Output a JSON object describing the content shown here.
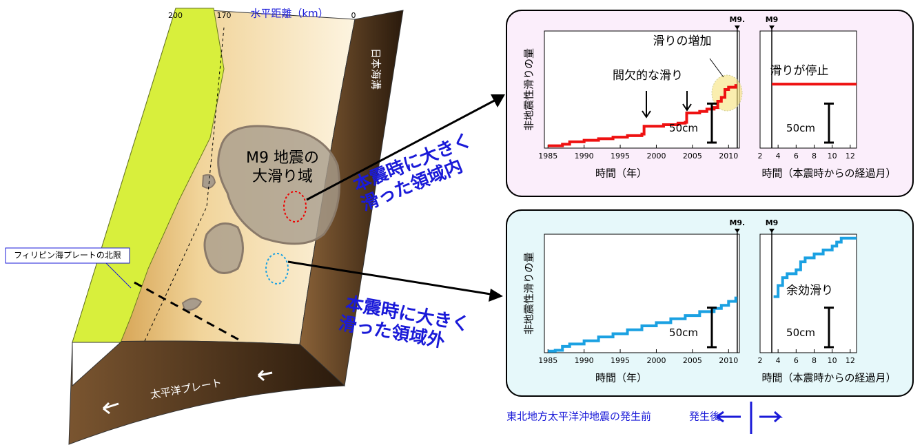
{
  "diagram": {
    "distance_title": "水平距離（km）",
    "distance_ticks": [
      200,
      170,
      0
    ],
    "trench": "日本海溝",
    "slip_area": [
      "M9 地震の",
      "大滑り域"
    ],
    "inside": [
      "本震時に大きく",
      "滑った領域内"
    ],
    "outside": [
      "本震時に大きく",
      "滑った領域外"
    ],
    "plate_limit": "フィリピン海プレートの北限",
    "plate": "太平洋プレート",
    "before": "東北地方太平洋沖地震の発生前",
    "after": "発生後"
  },
  "chart_data": [
    {
      "type": "line",
      "step": "post",
      "color": "#ee1111",
      "y_label": "非地震性滑りの量",
      "x_label": "時間（年）",
      "xlim": [
        1984.5,
        2011.5
      ],
      "xticks": [
        1985,
        1990,
        1995,
        2000,
        2005,
        2010
      ],
      "ylim": [
        0,
        150
      ],
      "mainshock": 2011.2,
      "mainshock_label": "M9.",
      "scale_bar": {
        "value": 50,
        "label": "50cm"
      },
      "annotations": [
        "間欠的な滑り",
        "滑りの増加"
      ],
      "x": [
        1985,
        1987,
        1988,
        1990,
        1992,
        1994,
        1996,
        1998,
        1998.3,
        2001,
        2003,
        2004,
        2004.2,
        2006,
        2007,
        2008,
        2008.5,
        2009,
        2009.5,
        2010,
        2011
      ],
      "values": [
        3,
        5,
        8,
        10,
        12,
        14,
        16,
        18,
        28,
        30,
        32,
        33,
        45,
        47,
        50,
        52,
        60,
        65,
        75,
        78,
        82
      ]
    },
    {
      "type": "line",
      "step": "post",
      "color": "#ee1111",
      "x_label": "時間（本震時からの経過月）",
      "xlim": [
        2,
        12.7
      ],
      "xticks": [
        2,
        4,
        6,
        8,
        10,
        12
      ],
      "ylim": [
        0,
        150
      ],
      "mainshock": 3.3,
      "mainshock_label": "M9",
      "scale_bar": {
        "value": 50,
        "label": "50cm"
      },
      "annotations": [
        "滑りが停止"
      ],
      "x": [
        3.3,
        12.7
      ],
      "values": [
        82,
        82
      ]
    },
    {
      "type": "line",
      "step": "post",
      "color": "#1ba1e2",
      "y_label": "非地震性滑りの量",
      "x_label": "時間（年）",
      "xlim": [
        1984.5,
        2011.5
      ],
      "xticks": [
        1985,
        1990,
        1995,
        2000,
        2005,
        2010
      ],
      "ylim": [
        0,
        150
      ],
      "mainshock": 2011.2,
      "mainshock_label": "M9.",
      "scale_bar": {
        "value": 50,
        "label": "50cm"
      },
      "annotations": [],
      "x": [
        1985,
        1986,
        1987,
        1988,
        1990,
        1992,
        1994,
        1996,
        1998,
        2000,
        2002,
        2004,
        2006,
        2008,
        2009,
        2010,
        2011
      ],
      "values": [
        2,
        3,
        8,
        11,
        15,
        20,
        24,
        29,
        34,
        38,
        43,
        47,
        52,
        56,
        60,
        65,
        71
      ]
    },
    {
      "type": "line",
      "step": "post",
      "color": "#1ba1e2",
      "x_label": "時間（本震時からの経過月）",
      "xlim": [
        2,
        12.7
      ],
      "xticks": [
        2,
        4,
        6,
        8,
        10,
        12
      ],
      "ylim": [
        0,
        150
      ],
      "mainshock": 3.3,
      "mainshock_label": "M9",
      "scale_bar": {
        "value": 50,
        "label": "50cm"
      },
      "annotations": [
        "余効滑り"
      ],
      "x": [
        3.5,
        4,
        4.5,
        5,
        6,
        6.5,
        7,
        8,
        9,
        10,
        10.5,
        11,
        12.7
      ],
      "values": [
        71,
        85,
        95,
        100,
        105,
        115,
        120,
        125,
        130,
        135,
        140,
        145,
        145
      ]
    }
  ]
}
